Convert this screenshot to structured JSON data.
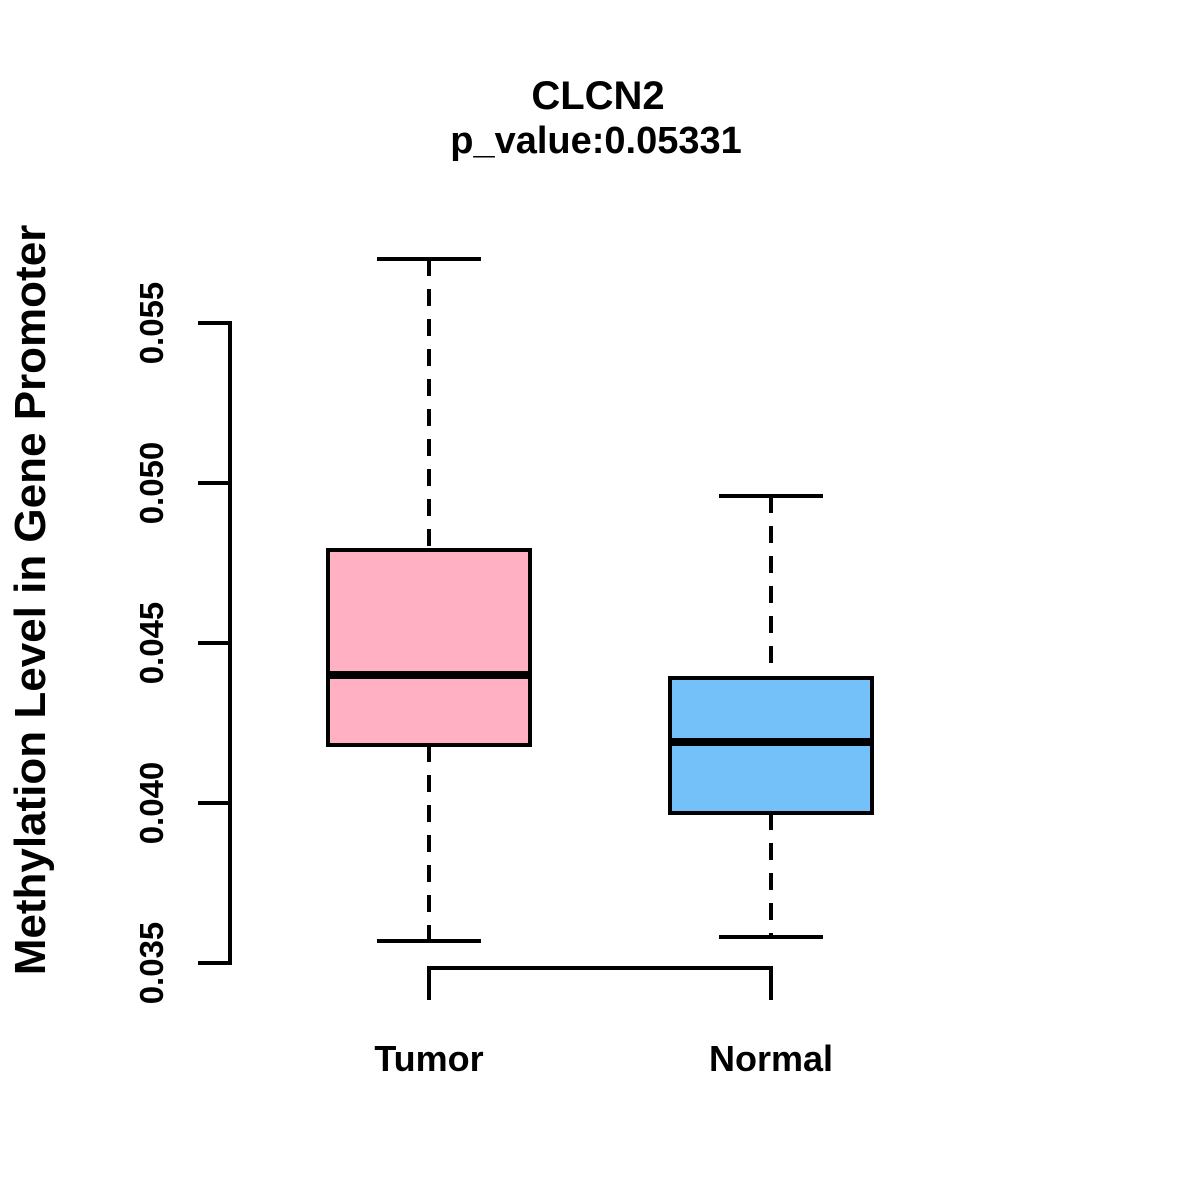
{
  "header": {
    "title": "CLCN2",
    "subtitle": "p_value:0.05331"
  },
  "axes": {
    "y_label": "Methylation Level in Gene Promoter"
  },
  "colors": {
    "tumor_fill": "#FFB1C3",
    "normal_fill": "#74C0F8",
    "line": "#000000",
    "background": "#FFFFFF"
  },
  "chart_data": {
    "type": "boxplot",
    "title": "CLCN2",
    "subtitle": "p_value:0.05331",
    "xlabel": "",
    "ylabel": "Methylation Level in Gene Promoter",
    "categories": [
      "Tumor",
      "Normal"
    ],
    "y_ticks": [
      0.035,
      0.04,
      0.045,
      0.05,
      0.055
    ],
    "y_tick_labels": [
      "0.035",
      "0.040",
      "0.045",
      "0.050",
      "0.055"
    ],
    "ylim": [
      0.0337,
      0.0575
    ],
    "grid": "off",
    "legend": "none",
    "series": [
      {
        "name": "Tumor",
        "color": "#FFB1C3",
        "whisker_low": 0.0357,
        "q1": 0.0418,
        "median": 0.044,
        "q3": 0.0479,
        "whisker_high": 0.057
      },
      {
        "name": "Normal",
        "color": "#74C0F8",
        "whisker_low": 0.0358,
        "q1": 0.0397,
        "median": 0.0419,
        "q3": 0.0439,
        "whisker_high": 0.0496
      }
    ]
  }
}
